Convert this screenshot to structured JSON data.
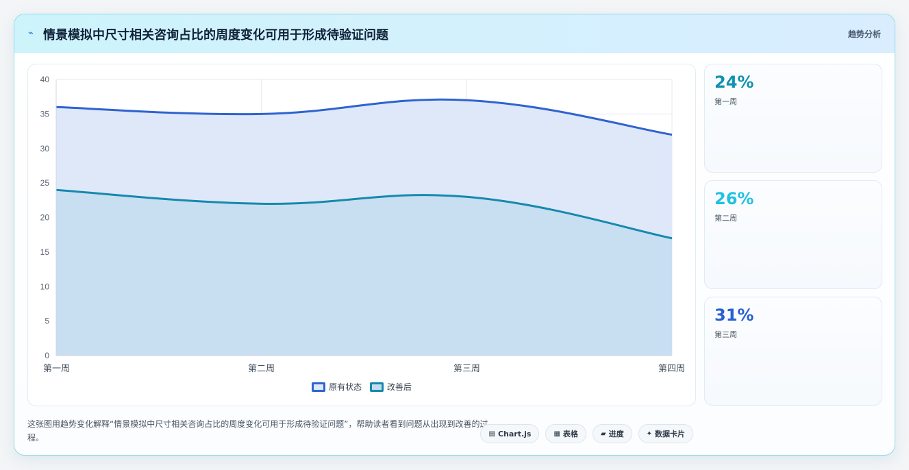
{
  "header": {
    "icon": "sparkle-icon",
    "title": "情景模拟中尺寸相关咨询占比的周度变化可用于形成待验证问题",
    "tag": "趋势分析"
  },
  "stats": [
    {
      "value": "24%",
      "label": "第一周",
      "color": "#1191b0"
    },
    {
      "value": "26%",
      "label": "第二周",
      "color": "#22c1e0"
    },
    {
      "value": "31%",
      "label": "第三周",
      "color": "#2860d0"
    }
  ],
  "description": "这张图用趋势变化解释“情景模拟中尺寸相关咨询占比的周度变化可用于形成待验证问题”，帮助读者看到问题从出现到改善的过程。",
  "chips": [
    {
      "icon": "▤",
      "label": "Chart.js"
    },
    {
      "icon": "▦",
      "label": "表格"
    },
    {
      "icon": "▰",
      "label": "进度"
    },
    {
      "icon": "✦",
      "label": "数据卡片"
    }
  ],
  "chart_data": {
    "type": "area",
    "categories": [
      "第一周",
      "第二周",
      "第三周",
      "第四周"
    ],
    "ylim": [
      0,
      40
    ],
    "yticks": [
      "0",
      "5",
      "10",
      "15",
      "20",
      "25",
      "30",
      "35",
      "40"
    ],
    "grid": true,
    "legend_position": "bottom",
    "series": [
      {
        "name": "原有状态",
        "values": [
          36,
          35,
          37,
          32
        ],
        "color": "#2f63d0",
        "fill": "#dfe8f9"
      },
      {
        "name": "改善后",
        "values": [
          24,
          22,
          23,
          17
        ],
        "color": "#1689ad",
        "fill": "#c4dcf0"
      }
    ]
  }
}
